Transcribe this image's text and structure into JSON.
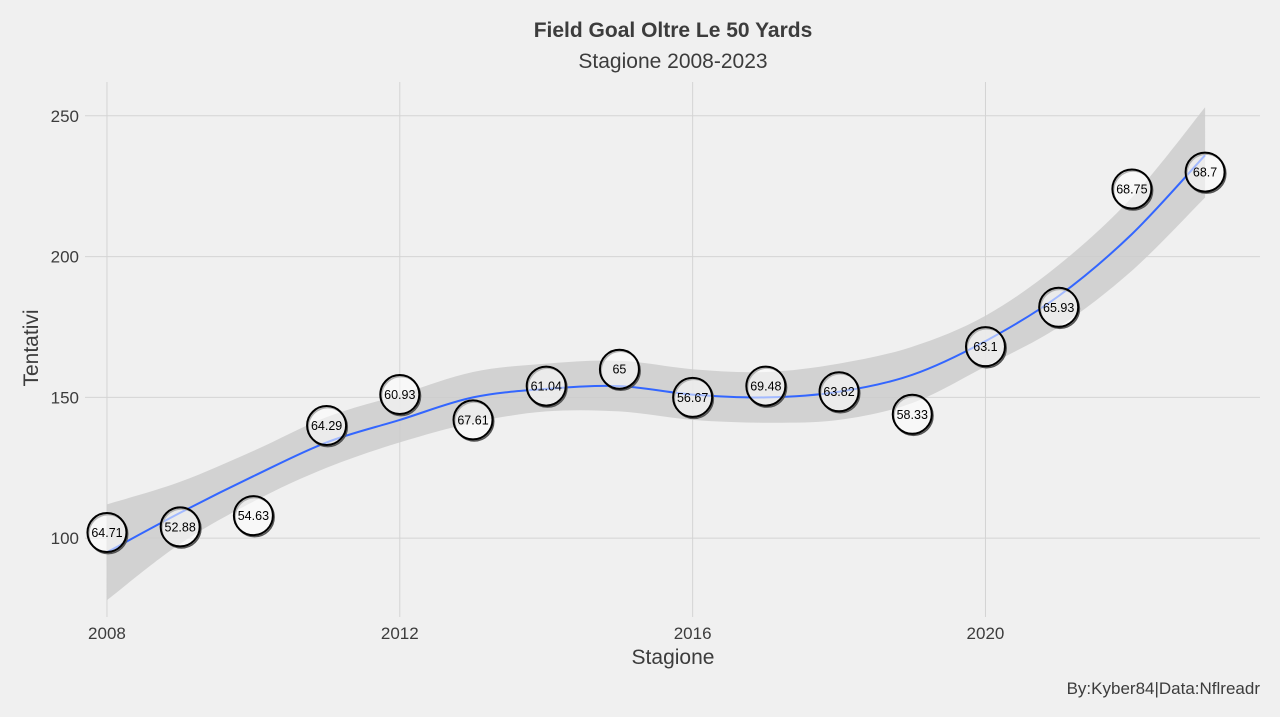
{
  "chart_data": {
    "type": "scatter",
    "title": "Field Goal Oltre Le 50 Yards",
    "subtitle": "Stagione 2008-2023",
    "xlabel": "Stagione",
    "ylabel": "Tentativi",
    "caption": "By:Kyber84|Data:Nflreadr",
    "xlim": [
      2007.7,
      2023.75
    ],
    "ylim": [
      72,
      262
    ],
    "x_ticks": [
      2008,
      2012,
      2016,
      2020
    ],
    "y_ticks": [
      100,
      150,
      200,
      250
    ],
    "grid": true,
    "points": [
      {
        "x": 2008,
        "y": 102,
        "label": "64.71"
      },
      {
        "x": 2009,
        "y": 104,
        "label": "52.88"
      },
      {
        "x": 2010,
        "y": 108,
        "label": "54.63"
      },
      {
        "x": 2011,
        "y": 140,
        "label": "64.29"
      },
      {
        "x": 2012,
        "y": 151,
        "label": "60.93"
      },
      {
        "x": 2013,
        "y": 142,
        "label": "67.61"
      },
      {
        "x": 2014,
        "y": 154,
        "label": "61.04"
      },
      {
        "x": 2015,
        "y": 160,
        "label": "65"
      },
      {
        "x": 2016,
        "y": 150,
        "label": "56.67"
      },
      {
        "x": 2017,
        "y": 154,
        "label": "69.48"
      },
      {
        "x": 2018,
        "y": 152,
        "label": "63.82"
      },
      {
        "x": 2019,
        "y": 144,
        "label": "58.33"
      },
      {
        "x": 2020,
        "y": 168,
        "label": "63.1"
      },
      {
        "x": 2021,
        "y": 182,
        "label": "65.93"
      },
      {
        "x": 2022,
        "y": 224,
        "label": "68.75"
      },
      {
        "x": 2023,
        "y": 230,
        "label": "68.7"
      }
    ],
    "trend": {
      "method": "smooth",
      "x": [
        2008,
        2009,
        2010,
        2011,
        2012,
        2013,
        2014,
        2015,
        2016,
        2017,
        2018,
        2019,
        2020,
        2021,
        2022,
        2023
      ],
      "y": [
        95,
        109,
        122,
        134,
        142,
        150,
        153,
        154,
        151,
        150,
        152,
        158,
        170,
        186,
        208,
        236
      ],
      "lower": [
        78,
        98,
        113,
        125,
        134,
        141,
        145,
        145,
        142,
        141,
        142,
        148,
        161,
        175,
        195,
        221
      ],
      "upper": [
        112,
        120,
        131,
        143,
        151,
        159,
        162,
        163,
        160,
        159,
        162,
        168,
        179,
        197,
        221,
        253
      ]
    },
    "colors": {
      "background": "#f0f0f0",
      "trend_line": "#3366ff",
      "ribbon": "#cccccc",
      "point_fill": "#ffffff",
      "point_stroke": "#000000",
      "grid": "#d4d4d4",
      "text": "#3c3c3c"
    }
  }
}
